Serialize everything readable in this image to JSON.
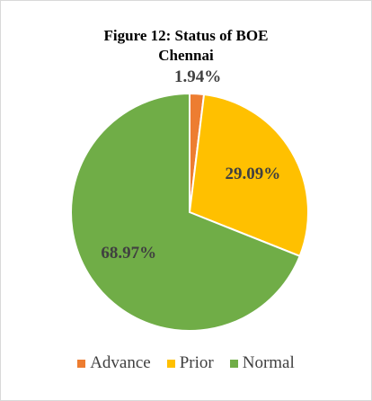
{
  "chart_data": {
    "type": "pie",
    "title": "Figure 12: Status of BOE Chennai",
    "categories": [
      "Advance",
      "Prior",
      "Normal"
    ],
    "values": [
      1.94,
      29.09,
      68.97
    ],
    "value_labels": [
      "1.94%",
      "29.09%",
      "68.97%"
    ],
    "colors": [
      "#ed7d31",
      "#ffc000",
      "#70ad47"
    ],
    "legend": "bottom"
  }
}
